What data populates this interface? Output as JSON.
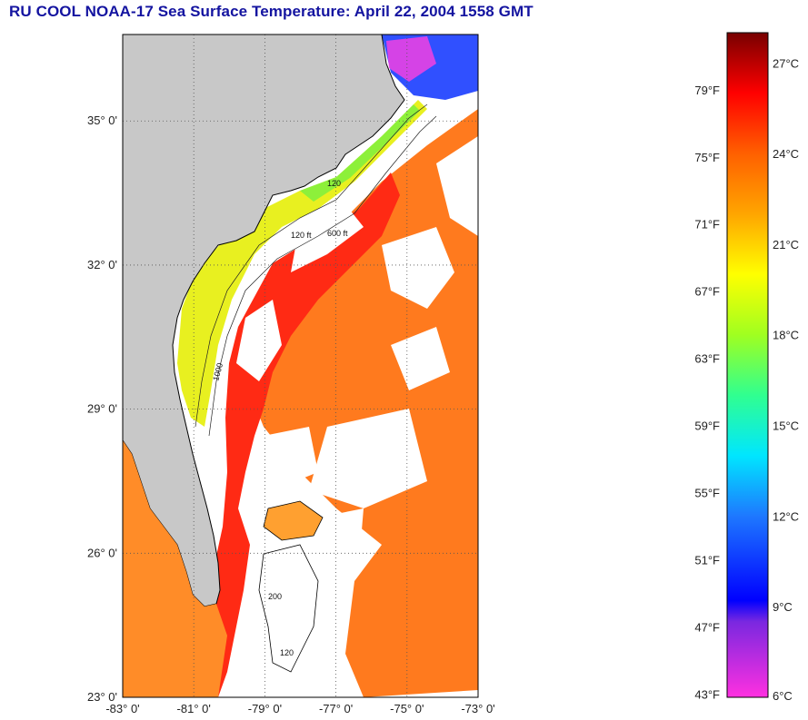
{
  "title": "RU COOL  NOAA-17  Sea Surface Temperature:  April 22, 2004 1558 GMT",
  "map": {
    "lon_range": [
      -83,
      -73
    ],
    "lat_range": [
      23,
      36.8
    ],
    "lat_ticks": [
      {
        "value": 35,
        "label": "35° 0'"
      },
      {
        "value": 32,
        "label": "32° 0'"
      },
      {
        "value": 29,
        "label": "29° 0'"
      },
      {
        "value": 26,
        "label": "26° 0'"
      },
      {
        "value": 23,
        "label": "23° 0'"
      }
    ],
    "lon_ticks": [
      {
        "value": -83,
        "label": "-83° 0'"
      },
      {
        "value": -81,
        "label": "-81° 0'"
      },
      {
        "value": -79,
        "label": "-79° 0'"
      },
      {
        "value": -77,
        "label": "-77° 0'"
      },
      {
        "value": -75,
        "label": "-75° 0'"
      },
      {
        "value": -73,
        "label": "-73° 0'"
      }
    ],
    "grid": "dotted",
    "colors": {
      "land": "#c8c8c8",
      "cloud": "#ffffff",
      "gulf_stream": "#ff2a14",
      "offshore": "#ff7a1e",
      "shelf": "#f0f020",
      "cold_north": "#3050ff",
      "coast_line": "#000000"
    },
    "isobath_labels": [
      "120",
      "1000",
      "120 ft",
      "600 ft",
      "200",
      "120"
    ]
  },
  "colorbar": {
    "min_c": 6,
    "max_c": 28,
    "fahrenheit_ticks": [
      {
        "value": 43,
        "label": "43°F"
      },
      {
        "value": 47,
        "label": "47°F"
      },
      {
        "value": 51,
        "label": "51°F"
      },
      {
        "value": 55,
        "label": "55°F"
      },
      {
        "value": 59,
        "label": "59°F"
      },
      {
        "value": 63,
        "label": "63°F"
      },
      {
        "value": 67,
        "label": "67°F"
      },
      {
        "value": 71,
        "label": "71°F"
      },
      {
        "value": 75,
        "label": "75°F"
      },
      {
        "value": 79,
        "label": "79°F"
      }
    ],
    "celsius_ticks": [
      {
        "value": 6,
        "label": "6°C"
      },
      {
        "value": 9,
        "label": "9°C"
      },
      {
        "value": 12,
        "label": "12°C"
      },
      {
        "value": 15,
        "label": "15°C"
      },
      {
        "value": 18,
        "label": "18°C"
      },
      {
        "value": 21,
        "label": "21°C"
      },
      {
        "value": 24,
        "label": "24°C"
      },
      {
        "value": 27,
        "label": "27°C"
      }
    ],
    "stops": [
      {
        "c": 6,
        "color": "#ff30e0"
      },
      {
        "c": 8.5,
        "color": "#7a28e0"
      },
      {
        "c": 9.2,
        "color": "#0000ff"
      },
      {
        "c": 12,
        "color": "#1e78ff"
      },
      {
        "c": 14,
        "color": "#00e6ff"
      },
      {
        "c": 16,
        "color": "#30ff90"
      },
      {
        "c": 18,
        "color": "#a0ff20"
      },
      {
        "c": 20,
        "color": "#ffff00"
      },
      {
        "c": 22,
        "color": "#ffa500"
      },
      {
        "c": 24,
        "color": "#ff6000"
      },
      {
        "c": 26,
        "color": "#ff0000"
      },
      {
        "c": 28,
        "color": "#780000"
      }
    ]
  }
}
